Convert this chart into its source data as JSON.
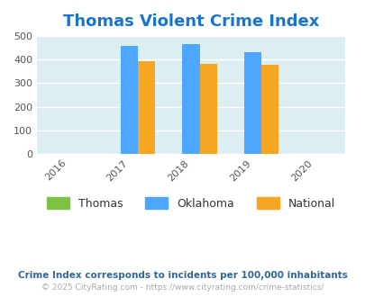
{
  "title": "Thomas Violent Crime Index",
  "title_color": "#1874cd",
  "years": [
    2016,
    2017,
    2018,
    2019,
    2020
  ],
  "bar_years": [
    2017,
    2018,
    2019
  ],
  "thomas_values": [
    0,
    0,
    0
  ],
  "oklahoma_values": [
    457,
    467,
    432
  ],
  "national_values": [
    394,
    381,
    380
  ],
  "thomas_color": "#7dc242",
  "oklahoma_color": "#4da6ff",
  "national_color": "#f5a623",
  "bg_color": "#dceef2",
  "ylim": [
    0,
    500
  ],
  "yticks": [
    0,
    100,
    200,
    300,
    400,
    500
  ],
  "bar_width": 0.28,
  "legend_labels": [
    "Thomas",
    "Oklahoma",
    "National"
  ],
  "note1": "Crime Index corresponds to incidents per 100,000 inhabitants",
  "note2": "© 2025 CityRating.com - https://www.cityrating.com/crime-statistics/",
  "grid_color": "#ffffff",
  "note1_color": "#336699",
  "note2_color": "#aaaaaa"
}
